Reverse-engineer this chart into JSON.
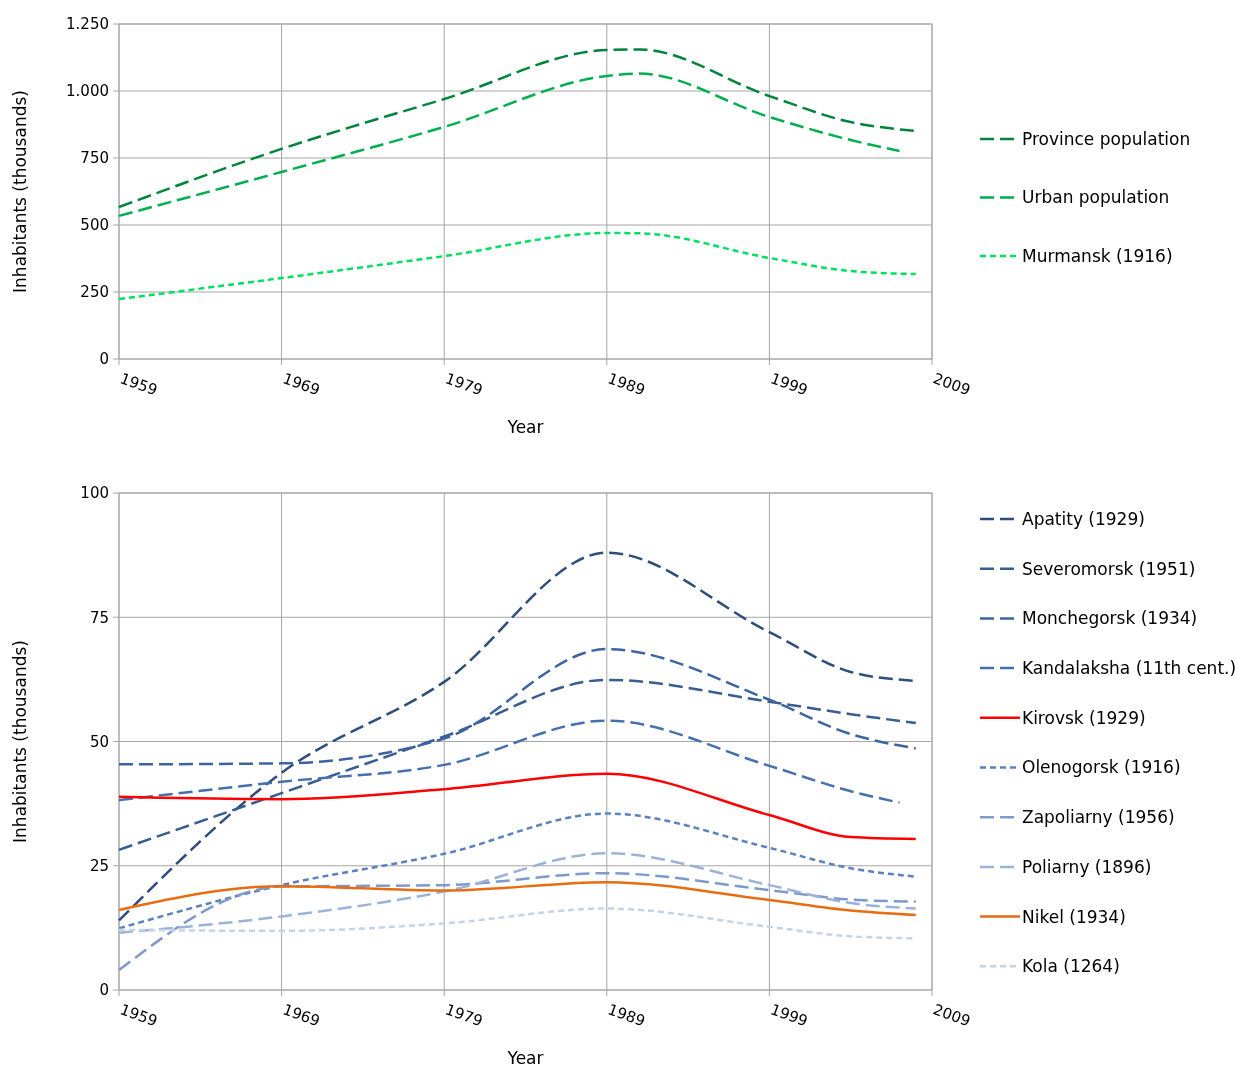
{
  "chart_data": [
    {
      "type": "line",
      "xlabel": "Year",
      "ylabel": "Inhabitants (thousands)",
      "x": [
        1959,
        1969,
        1979,
        1989,
        1991,
        1999,
        2004,
        2008
      ],
      "xlim": [
        1959,
        2009
      ],
      "xticks": [
        1959,
        1969,
        1979,
        1989,
        1999,
        2009
      ],
      "ylim": [
        0,
        1250
      ],
      "yticks": [
        0,
        250,
        500,
        750,
        {
          "value": 1000,
          "label": "1.000"
        },
        {
          "value": 1250,
          "label": "1.250"
        }
      ],
      "grid": true,
      "legend": "right",
      "series": [
        {
          "name": "Province population",
          "color": "#00843d",
          "line_style": "dashed",
          "values": [
            567,
            784,
            970,
            1153,
            1155,
            981,
            884,
            851
          ]
        },
        {
          "name": "Urban population",
          "color": "#00b050",
          "line_style": "dashed",
          "x": [
            1959,
            1969,
            1979,
            1989,
            1991,
            1999,
            2004,
            2007
          ],
          "values": [
            534,
            698,
            866,
            1056,
            1065,
            903,
            817,
            776
          ]
        },
        {
          "name": "Murmansk (1916)",
          "color": "#00e060",
          "line_style": "dotted",
          "values": [
            224,
            302,
            384,
            470,
            469,
            377,
            328,
            317
          ]
        }
      ]
    },
    {
      "type": "line",
      "xlabel": "Year",
      "ylabel": "Inhabitants (thousands)",
      "x": [
        1959,
        1969,
        1979,
        1989,
        1999,
        2004,
        2008
      ],
      "xlim": [
        1959,
        2009
      ],
      "xticks": [
        1959,
        1969,
        1979,
        1989,
        1999,
        2009
      ],
      "ylim": [
        0,
        100
      ],
      "yticks": [
        0,
        25,
        50,
        75,
        100
      ],
      "grid": true,
      "legend": "right",
      "series": [
        {
          "name": "Apatity (1929)",
          "color": "#2e4d7b",
          "line_style": "dashed",
          "values": [
            14,
            43.7,
            62,
            88,
            72,
            64,
            62.2
          ]
        },
        {
          "name": "Severomorsk (1951)",
          "color": "#375d91",
          "line_style": "dashed",
          "values": [
            28.2,
            39.6,
            51,
            62.4,
            58,
            55.5,
            53.7
          ]
        },
        {
          "name": "Monchegorsk (1934)",
          "color": "#3c64a0",
          "line_style": "dashed",
          "values": [
            45.4,
            45.6,
            50.6,
            68.6,
            58.4,
            51.5,
            48.6
          ]
        },
        {
          "name": "Kandalaksha (11th cent.)",
          "color": "#4470ad",
          "line_style": "dashed",
          "x": [
            1959,
            1969,
            1979,
            1989,
            1999,
            2004,
            2007
          ],
          "values": [
            38.2,
            41.9,
            45.3,
            54.2,
            45.1,
            40,
            37.7
          ]
        },
        {
          "name": "Kirovsk (1929)",
          "color": "#ff0000",
          "line_style": "solid",
          "values": [
            38.9,
            38.4,
            40.4,
            43.5,
            35.2,
            30.8,
            30.4
          ]
        },
        {
          "name": "Olenogorsk (1916)",
          "color": "#5a82c0",
          "line_style": "dotted",
          "values": [
            12.4,
            21.1,
            27.4,
            35.5,
            28.6,
            24.5,
            22.8
          ]
        },
        {
          "name": "Zapoliarny (1956)",
          "color": "#7e9acb",
          "line_style": "dashed",
          "values": [
            4,
            20.8,
            21.1,
            23.5,
            20.1,
            18.2,
            17.8
          ]
        },
        {
          "name": "Poliarny (1896)",
          "color": "#9db2d8",
          "line_style": "dashed",
          "values": [
            11.5,
            14.8,
            19.8,
            27.5,
            21.1,
            17.5,
            16.4
          ]
        },
        {
          "name": "Nikel (1934)",
          "color": "#e86d10",
          "line_style": "solid",
          "values": [
            16.1,
            20.9,
            20,
            21.7,
            18.1,
            16,
            15.1
          ]
        },
        {
          "name": "Kola (1264)",
          "color": "#c6d2e6",
          "line_style": "dotted",
          "values": [
            12.1,
            11.9,
            13.4,
            16.4,
            12.7,
            10.8,
            10.4
          ]
        }
      ]
    }
  ]
}
